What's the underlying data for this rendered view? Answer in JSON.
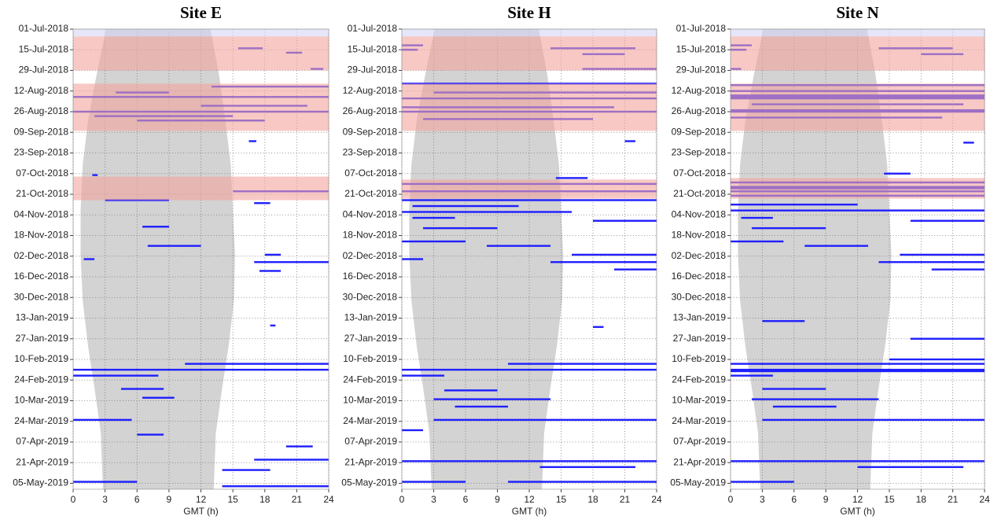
{
  "chart_data": [
    {
      "type": "raster",
      "title": "Site E",
      "x_label": "GMT (h)",
      "xlim": [
        0,
        24
      ],
      "xticks": [
        0,
        3,
        6,
        9,
        12,
        15,
        18,
        21,
        24
      ],
      "ylim": [
        "01-Jul-2018",
        "09-May-2019"
      ],
      "yticks": [
        "01-Jul-2018",
        "15-Jul-2018",
        "29-Jul-2018",
        "12-Aug-2018",
        "26-Aug-2018",
        "09-Sep-2018",
        "23-Sep-2018",
        "07-Oct-2018",
        "21-Oct-2018",
        "04-Nov-2018",
        "18-Nov-2018",
        "02-Dec-2018",
        "16-Dec-2018",
        "30-Dec-2018",
        "13-Jan-2019",
        "27-Jan-2019",
        "10-Feb-2019",
        "24-Feb-2019",
        "10-Mar-2019",
        "24-Mar-2019",
        "07-Apr-2019",
        "21-Apr-2019",
        "05-May-2019"
      ],
      "grid": true,
      "daylight": {
        "color": "#d3d3d3",
        "dates": [
          "01-Jul-2018",
          "01-Aug-2018",
          "01-Sep-2018",
          "01-Oct-2018",
          "01-Nov-2018",
          "01-Dec-2018",
          "01-Jan-2019",
          "01-Feb-2019",
          "01-Mar-2019",
          "01-Apr-2019",
          "09-May-2019"
        ],
        "sunrise": [
          3.1,
          2.2,
          1.4,
          0.9,
          0.7,
          0.7,
          0.9,
          1.4,
          2.0,
          2.6,
          2.8
        ],
        "sunset": [
          12.9,
          13.7,
          14.3,
          14.8,
          15.0,
          15.2,
          15.1,
          14.6,
          14.0,
          13.4,
          13.2
        ]
      },
      "periods": [
        {
          "start": "01-Jul-2018",
          "end": "06-Jul-2018",
          "color": "#d6d6f6"
        },
        {
          "start": "06-Jul-2018",
          "end": "29-Jul-2018",
          "color": "#f4a59c"
        },
        {
          "start": "07-Aug-2018",
          "end": "08-Sep-2018",
          "color": "#f4a59c"
        },
        {
          "start": "09-Oct-2018",
          "end": "25-Oct-2018",
          "color": "#f4a59c"
        }
      ],
      "segment_color": "#1f1fff",
      "segments": [
        {
          "date": "14-Jul-2018",
          "start": 15.5,
          "end": 17.8
        },
        {
          "date": "17-Jul-2018",
          "start": 20,
          "end": 21.5
        },
        {
          "date": "28-Jul-2018",
          "start": 22.3,
          "end": 23.5
        },
        {
          "date": "09-Aug-2018",
          "start": 13,
          "end": 24
        },
        {
          "date": "13-Aug-2018",
          "start": 4,
          "end": 9
        },
        {
          "date": "16-Aug-2018",
          "start": 0,
          "end": 24
        },
        {
          "date": "22-Aug-2018",
          "start": 12,
          "end": 22
        },
        {
          "date": "26-Aug-2018",
          "start": 0,
          "end": 24
        },
        {
          "date": "29-Aug-2018",
          "start": 2,
          "end": 15
        },
        {
          "date": "01-Sep-2018",
          "start": 6,
          "end": 18
        },
        {
          "date": "15-Sep-2018",
          "start": 16.5,
          "end": 17.2
        },
        {
          "date": "08-Oct-2018",
          "start": 1.8,
          "end": 2.3
        },
        {
          "date": "19-Oct-2018",
          "start": 15,
          "end": 24
        },
        {
          "date": "25-Oct-2018",
          "start": 3,
          "end": 9
        },
        {
          "date": "27-Oct-2018",
          "start": 17,
          "end": 18.5
        },
        {
          "date": "12-Nov-2018",
          "start": 6.5,
          "end": 9
        },
        {
          "date": "25-Nov-2018",
          "start": 7,
          "end": 12
        },
        {
          "date": "01-Dec-2018",
          "start": 18,
          "end": 19.5
        },
        {
          "date": "04-Dec-2018",
          "start": 1,
          "end": 2
        },
        {
          "date": "06-Dec-2018",
          "start": 17,
          "end": 24
        },
        {
          "date": "12-Dec-2018",
          "start": 17.5,
          "end": 19.5
        },
        {
          "date": "18-Jan-2019",
          "start": 18.5,
          "end": 19
        },
        {
          "date": "13-Feb-2019",
          "start": 10.5,
          "end": 24
        },
        {
          "date": "17-Feb-2019",
          "start": 0,
          "end": 24
        },
        {
          "date": "21-Feb-2019",
          "start": 0,
          "end": 8
        },
        {
          "date": "02-Mar-2019",
          "start": 4.5,
          "end": 8.5
        },
        {
          "date": "08-Mar-2019",
          "start": 6.5,
          "end": 9.5
        },
        {
          "date": "23-Mar-2019",
          "start": 0,
          "end": 5.5
        },
        {
          "date": "02-Apr-2019",
          "start": 6,
          "end": 8.5
        },
        {
          "date": "10-Apr-2019",
          "start": 20,
          "end": 22.5
        },
        {
          "date": "19-Apr-2019",
          "start": 17,
          "end": 24
        },
        {
          "date": "26-Apr-2019",
          "start": 14,
          "end": 18.5
        },
        {
          "date": "04-May-2019",
          "start": 0,
          "end": 6
        },
        {
          "date": "07-May-2019",
          "start": 14,
          "end": 24
        }
      ]
    },
    {
      "type": "raster",
      "title": "Site H",
      "x_label": "GMT (h)",
      "xlim": [
        0,
        24
      ],
      "xticks": [
        0,
        3,
        6,
        9,
        12,
        15,
        18,
        21,
        24
      ],
      "ylim": [
        "01-Jul-2018",
        "09-May-2019"
      ],
      "yticks": [
        "01-Jul-2018",
        "15-Jul-2018",
        "29-Jul-2018",
        "12-Aug-2018",
        "26-Aug-2018",
        "09-Sep-2018",
        "23-Sep-2018",
        "07-Oct-2018",
        "21-Oct-2018",
        "04-Nov-2018",
        "18-Nov-2018",
        "02-Dec-2018",
        "16-Dec-2018",
        "30-Dec-2018",
        "13-Jan-2019",
        "27-Jan-2019",
        "10-Feb-2019",
        "24-Feb-2019",
        "10-Mar-2019",
        "24-Mar-2019",
        "07-Apr-2019",
        "21-Apr-2019",
        "05-May-2019"
      ],
      "grid": true,
      "daylight": {
        "color": "#d3d3d3",
        "dates": [
          "01-Jul-2018",
          "01-Aug-2018",
          "01-Sep-2018",
          "01-Oct-2018",
          "01-Nov-2018",
          "01-Dec-2018",
          "01-Jan-2019",
          "01-Feb-2019",
          "01-Mar-2019",
          "01-Apr-2019",
          "09-May-2019"
        ],
        "sunrise": [
          3.1,
          2.2,
          1.4,
          0.9,
          0.7,
          0.7,
          0.9,
          1.4,
          2.0,
          2.6,
          2.8
        ],
        "sunset": [
          12.9,
          13.7,
          14.3,
          14.8,
          15.0,
          15.2,
          15.1,
          14.6,
          14.0,
          13.4,
          13.2
        ]
      },
      "periods": [
        {
          "start": "01-Jul-2018",
          "end": "06-Jul-2018",
          "color": "#d6d6f6"
        },
        {
          "start": "06-Jul-2018",
          "end": "29-Jul-2018",
          "color": "#f4a59c"
        },
        {
          "start": "07-Aug-2018",
          "end": "08-Sep-2018",
          "color": "#f4a59c"
        },
        {
          "start": "11-Oct-2018",
          "end": "24-Oct-2018",
          "color": "#f4a59c"
        }
      ],
      "segment_color": "#1f1fff",
      "segments": [
        {
          "date": "12-Jul-2018",
          "start": 0,
          "end": 2
        },
        {
          "date": "15-Jul-2018",
          "start": 0,
          "end": 1.5
        },
        {
          "date": "14-Jul-2018",
          "start": 14,
          "end": 22
        },
        {
          "date": "18-Jul-2018",
          "start": 17,
          "end": 21
        },
        {
          "date": "28-Jul-2018",
          "start": 17,
          "end": 24
        },
        {
          "date": "07-Aug-2018",
          "start": 0,
          "end": 24
        },
        {
          "date": "13-Aug-2018",
          "start": 3,
          "end": 24
        },
        {
          "date": "17-Aug-2018",
          "start": 0,
          "end": 24
        },
        {
          "date": "23-Aug-2018",
          "start": 0,
          "end": 20
        },
        {
          "date": "26-Aug-2018",
          "start": 0,
          "end": 24
        },
        {
          "date": "31-Aug-2018",
          "start": 2,
          "end": 18
        },
        {
          "date": "15-Sep-2018",
          "start": 21,
          "end": 22
        },
        {
          "date": "10-Oct-2018",
          "start": 14.5,
          "end": 17.5
        },
        {
          "date": "14-Oct-2018",
          "start": 0,
          "end": 24
        },
        {
          "date": "19-Oct-2018",
          "start": 0,
          "end": 24
        },
        {
          "date": "25-Oct-2018",
          "start": 0,
          "end": 24
        },
        {
          "date": "29-Oct-2018",
          "start": 1,
          "end": 11
        },
        {
          "date": "02-Nov-2018",
          "start": 0,
          "end": 16
        },
        {
          "date": "06-Nov-2018",
          "start": 1,
          "end": 5
        },
        {
          "date": "08-Nov-2018",
          "start": 18,
          "end": 24
        },
        {
          "date": "13-Nov-2018",
          "start": 2,
          "end": 9
        },
        {
          "date": "22-Nov-2018",
          "start": 0,
          "end": 6
        },
        {
          "date": "25-Nov-2018",
          "start": 8,
          "end": 14
        },
        {
          "date": "01-Dec-2018",
          "start": 16,
          "end": 24
        },
        {
          "date": "04-Dec-2018",
          "start": 0,
          "end": 2
        },
        {
          "date": "06-Dec-2018",
          "start": 14,
          "end": 24
        },
        {
          "date": "11-Dec-2018",
          "start": 20,
          "end": 24
        },
        {
          "date": "19-Jan-2019",
          "start": 18,
          "end": 19
        },
        {
          "date": "13-Feb-2019",
          "start": 10,
          "end": 24
        },
        {
          "date": "17-Feb-2019",
          "start": 0,
          "end": 24
        },
        {
          "date": "21-Feb-2019",
          "start": 0,
          "end": 4
        },
        {
          "date": "03-Mar-2019",
          "start": 4,
          "end": 9
        },
        {
          "date": "09-Mar-2019",
          "start": 3,
          "end": 14
        },
        {
          "date": "14-Mar-2019",
          "start": 5,
          "end": 10
        },
        {
          "date": "23-Mar-2019",
          "start": 3,
          "end": 24
        },
        {
          "date": "30-Mar-2019",
          "start": 0,
          "end": 2
        },
        {
          "date": "20-Apr-2019",
          "start": 0,
          "end": 24
        },
        {
          "date": "24-Apr-2019",
          "start": 13,
          "end": 22
        },
        {
          "date": "04-May-2019",
          "start": 0,
          "end": 6
        },
        {
          "date": "04-May-2019",
          "start": 10,
          "end": 24
        }
      ]
    },
    {
      "type": "raster",
      "title": "Site N",
      "x_label": "GMT (h)",
      "xlim": [
        0,
        24
      ],
      "xticks": [
        0,
        3,
        6,
        9,
        12,
        15,
        18,
        21,
        24
      ],
      "ylim": [
        "01-Jul-2018",
        "09-May-2019"
      ],
      "yticks": [
        "01-Jul-2018",
        "15-Jul-2018",
        "29-Jul-2018",
        "12-Aug-2018",
        "26-Aug-2018",
        "09-Sep-2018",
        "23-Sep-2018",
        "07-Oct-2018",
        "21-Oct-2018",
        "04-Nov-2018",
        "18-Nov-2018",
        "02-Dec-2018",
        "16-Dec-2018",
        "30-Dec-2018",
        "13-Jan-2019",
        "27-Jan-2019",
        "10-Feb-2019",
        "24-Feb-2019",
        "10-Mar-2019",
        "24-Mar-2019",
        "07-Apr-2019",
        "21-Apr-2019",
        "05-May-2019"
      ],
      "grid": true,
      "daylight": {
        "color": "#d3d3d3",
        "dates": [
          "01-Jul-2018",
          "01-Aug-2018",
          "01-Sep-2018",
          "01-Oct-2018",
          "01-Nov-2018",
          "01-Dec-2018",
          "01-Jan-2019",
          "01-Feb-2019",
          "01-Mar-2019",
          "01-Apr-2019",
          "09-May-2019"
        ],
        "sunrise": [
          3.1,
          2.2,
          1.4,
          0.9,
          0.7,
          0.7,
          0.9,
          1.4,
          2.0,
          2.6,
          2.8
        ],
        "sunset": [
          12.9,
          13.7,
          14.3,
          14.8,
          15.0,
          15.2,
          15.1,
          14.6,
          14.0,
          13.4,
          13.2
        ]
      },
      "periods": [
        {
          "start": "01-Jul-2018",
          "end": "06-Jul-2018",
          "color": "#d6d6f6"
        },
        {
          "start": "06-Jul-2018",
          "end": "29-Jul-2018",
          "color": "#f4a59c"
        },
        {
          "start": "07-Aug-2018",
          "end": "08-Sep-2018",
          "color": "#f4a59c"
        },
        {
          "start": "10-Oct-2018",
          "end": "24-Oct-2018",
          "color": "#f4a59c"
        }
      ],
      "segment_color": "#1f1fff",
      "segments": [
        {
          "date": "12-Jul-2018",
          "start": 0,
          "end": 2
        },
        {
          "date": "15-Jul-2018",
          "start": 0,
          "end": 1.5
        },
        {
          "date": "14-Jul-2018",
          "start": 14,
          "end": 21
        },
        {
          "date": "18-Jul-2018",
          "start": 18,
          "end": 22
        },
        {
          "date": "28-Jul-2018",
          "start": 0,
          "end": 1
        },
        {
          "date": "08-Aug-2018",
          "start": 0,
          "end": 24
        },
        {
          "date": "12-Aug-2018",
          "start": 0,
          "end": 24
        },
        {
          "date": "15-Aug-2018",
          "start": 0,
          "end": 24
        },
        {
          "date": "16-Aug-2018",
          "start": 0,
          "end": 24
        },
        {
          "date": "17-Aug-2018",
          "start": 0,
          "end": 24
        },
        {
          "date": "21-Aug-2018",
          "start": 2,
          "end": 22
        },
        {
          "date": "25-Aug-2018",
          "start": 0,
          "end": 24
        },
        {
          "date": "26-Aug-2018",
          "start": 0,
          "end": 24
        },
        {
          "date": "30-Aug-2018",
          "start": 0,
          "end": 20
        },
        {
          "date": "16-Sep-2018",
          "start": 22,
          "end": 23
        },
        {
          "date": "07-Oct-2018",
          "start": 14.5,
          "end": 17
        },
        {
          "date": "13-Oct-2018",
          "start": 0,
          "end": 24
        },
        {
          "date": "16-Oct-2018",
          "start": 0,
          "end": 24
        },
        {
          "date": "17-Oct-2018",
          "start": 0,
          "end": 24
        },
        {
          "date": "19-Oct-2018",
          "start": 0,
          "end": 24
        },
        {
          "date": "22-Oct-2018",
          "start": 0,
          "end": 24
        },
        {
          "date": "28-Oct-2018",
          "start": 0,
          "end": 12
        },
        {
          "date": "01-Nov-2018",
          "start": 0,
          "end": 24
        },
        {
          "date": "06-Nov-2018",
          "start": 1,
          "end": 4
        },
        {
          "date": "08-Nov-2018",
          "start": 17,
          "end": 24
        },
        {
          "date": "13-Nov-2018",
          "start": 2,
          "end": 9
        },
        {
          "date": "22-Nov-2018",
          "start": 0,
          "end": 5
        },
        {
          "date": "25-Nov-2018",
          "start": 7,
          "end": 13
        },
        {
          "date": "01-Dec-2018",
          "start": 16,
          "end": 24
        },
        {
          "date": "06-Dec-2018",
          "start": 14,
          "end": 24
        },
        {
          "date": "11-Dec-2018",
          "start": 19,
          "end": 24
        },
        {
          "date": "15-Jan-2019",
          "start": 3,
          "end": 7
        },
        {
          "date": "27-Jan-2019",
          "start": 17,
          "end": 24
        },
        {
          "date": "10-Feb-2019",
          "start": 15,
          "end": 24
        },
        {
          "date": "13-Feb-2019",
          "start": 0,
          "end": 24
        },
        {
          "date": "17-Feb-2019",
          "start": 0,
          "end": 24
        },
        {
          "date": "18-Feb-2019",
          "start": 0,
          "end": 24
        },
        {
          "date": "21-Feb-2019",
          "start": 0,
          "end": 4
        },
        {
          "date": "02-Mar-2019",
          "start": 3,
          "end": 9
        },
        {
          "date": "09-Mar-2019",
          "start": 2,
          "end": 14
        },
        {
          "date": "14-Mar-2019",
          "start": 4,
          "end": 10
        },
        {
          "date": "23-Mar-2019",
          "start": 3,
          "end": 24
        },
        {
          "date": "20-Apr-2019",
          "start": 0,
          "end": 24
        },
        {
          "date": "24-Apr-2019",
          "start": 12,
          "end": 22
        },
        {
          "date": "04-May-2019",
          "start": 0,
          "end": 6
        }
      ]
    }
  ]
}
